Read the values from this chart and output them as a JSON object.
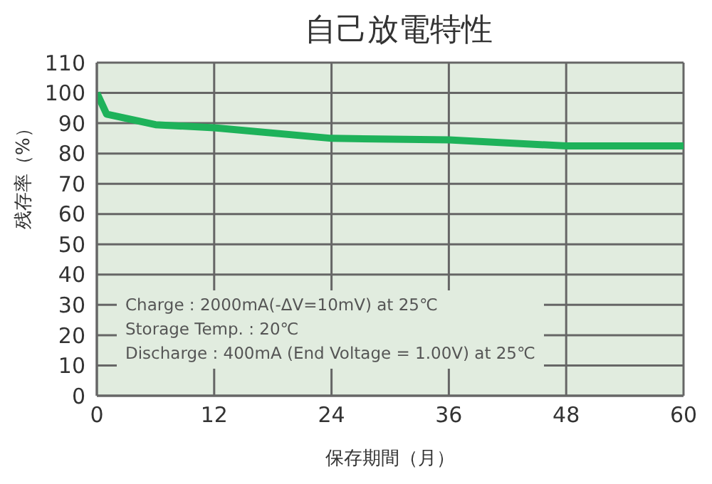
{
  "chart_data": {
    "type": "line",
    "title": "自己放電特性",
    "xlabel": "保存期間（月）",
    "ylabel": "残存率（%）",
    "x": [
      0,
      1,
      6,
      12,
      24,
      36,
      48,
      60
    ],
    "series": [
      {
        "color": "#1eb25a",
        "values": [
          100,
          93,
          89.5,
          88.5,
          85,
          84.5,
          82.5,
          82.5
        ]
      }
    ],
    "xlim": [
      0,
      60
    ],
    "xticks": [
      0,
      12,
      24,
      36,
      48,
      60
    ],
    "ylim": [
      0,
      110
    ],
    "yticks": [
      0,
      10,
      20,
      30,
      40,
      50,
      60,
      70,
      80,
      90,
      100,
      110
    ],
    "grid": true,
    "marker": "none",
    "line_style": "solid",
    "legend": false,
    "annotations": [
      "Charge : 2000mA(-ΔV=10mV) at 25℃",
      "Storage Temp. : 20℃",
      "Discharge : 400mA (End Voltage = 1.00V) at 25℃"
    ]
  }
}
